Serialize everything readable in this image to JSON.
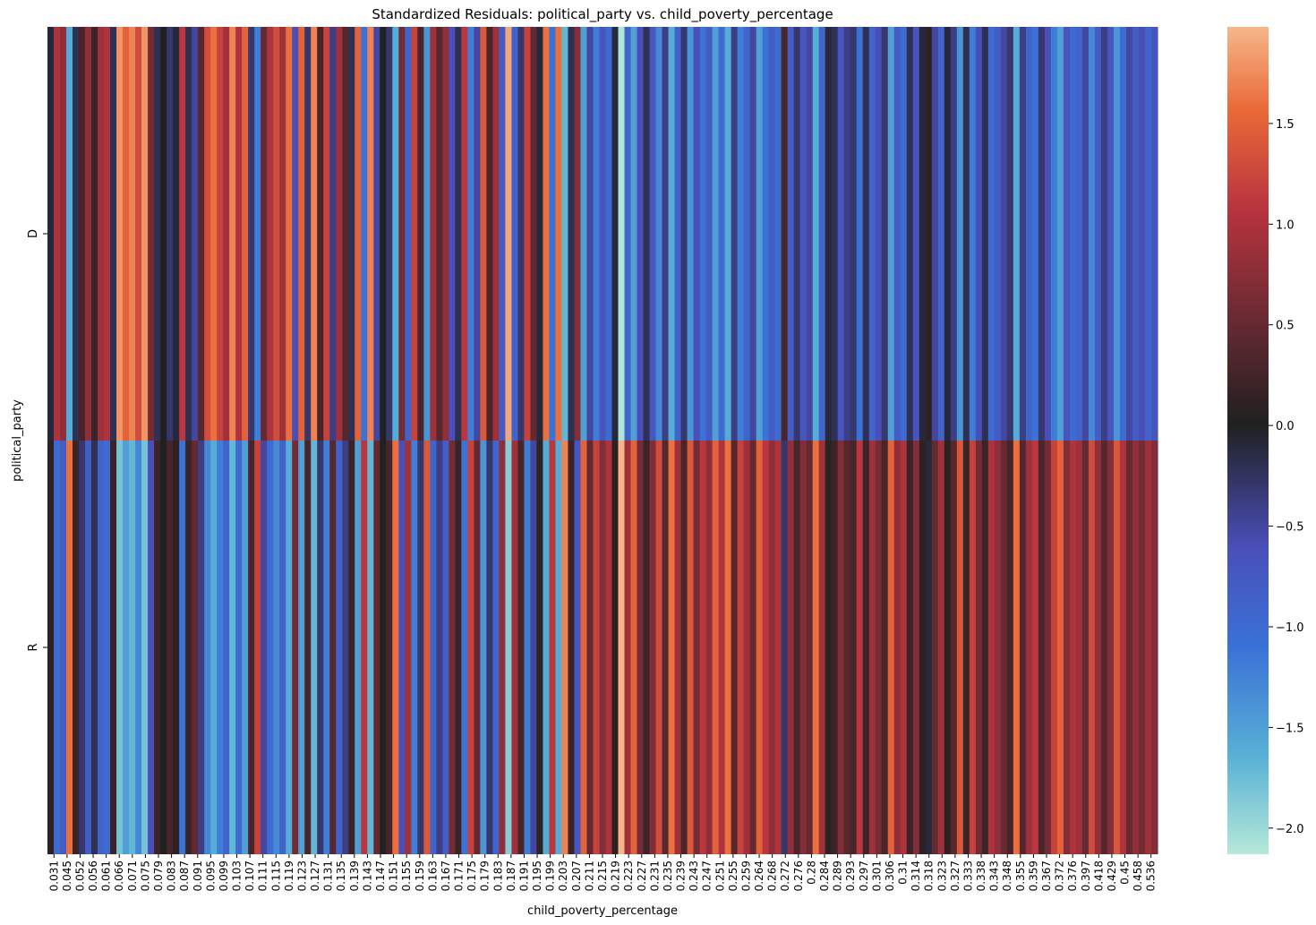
{
  "chart_data": {
    "type": "heatmap",
    "title": "Standardized Residuals: political_party vs. child_poverty_percentage",
    "xlabel": "child_poverty_percentage",
    "ylabel": "political_party",
    "rows": [
      "D",
      "R"
    ],
    "x_tick_labels": [
      "0.031",
      "0.045",
      "0.052",
      "0.056",
      "0.061",
      "0.066",
      "0.071",
      "0.075",
      "0.079",
      "0.083",
      "0.087",
      "0.091",
      "0.095",
      "0.099",
      "0.103",
      "0.107",
      "0.111",
      "0.115",
      "0.119",
      "0.123",
      "0.127",
      "0.131",
      "0.135",
      "0.139",
      "0.143",
      "0.147",
      "0.151",
      "0.155",
      "0.159",
      "0.163",
      "0.167",
      "0.171",
      "0.175",
      "0.179",
      "0.183",
      "0.187",
      "0.191",
      "0.195",
      "0.199",
      "0.203",
      "0.207",
      "0.211",
      "0.215",
      "0.219",
      "0.223",
      "0.227",
      "0.231",
      "0.235",
      "0.239",
      "0.243",
      "0.247",
      "0.251",
      "0.255",
      "0.259",
      "0.264",
      "0.268",
      "0.272",
      "0.276",
      "0.28",
      "0.284",
      "0.289",
      "0.293",
      "0.297",
      "0.301",
      "0.306",
      "0.31",
      "0.314",
      "0.318",
      "0.323",
      "0.327",
      "0.333",
      "0.338",
      "0.343",
      "0.348",
      "0.355",
      "0.359",
      "0.367",
      "0.372",
      "0.376",
      "0.397",
      "0.418",
      "0.429",
      "0.45",
      "0.458",
      "0.536"
    ],
    "d_row_residuals": [
      -0.1,
      1.0,
      0.8,
      -1.6,
      -0.2,
      0.3,
      0.8,
      0.2,
      0.9,
      1.0,
      -0.2,
      1.8,
      1.5,
      1.7,
      1.3,
      1.8,
      0.6,
      -0.2,
      0.0,
      -0.3,
      -0.1,
      1.1,
      -0.2,
      -0.5,
      0.4,
      1.3,
      1.6,
      1.2,
      0.9,
      1.7,
      1.0,
      1.5,
      -0.3,
      -1.2,
      0.5,
      1.0,
      1.3,
      0.9,
      1.6,
      -0.6,
      1.5,
      -0.3,
      1.7,
      0.3,
      1.2,
      -0.4,
      0.9,
      0.4,
      -0.2,
      1.5,
      -1.1,
      1.7,
      -0.5,
      0.0,
      -0.3,
      -1.6,
      0.6,
      -0.9,
      1.2,
      0.3,
      -1.4,
      0.9,
      0.4,
      0.8,
      -0.6,
      -0.2,
      1.1,
      -1.2,
      -0.5,
      1.4,
      0.3,
      0.9,
      -0.8,
      1.9,
      -0.9,
      -0.3,
      1.2,
      0.5,
      -0.1,
      1.6,
      -1.1,
      1.6,
      -1.7,
      -0.2,
      0.7,
      -1.5,
      -0.5,
      -1.2,
      -0.7,
      -1.0,
      -0.1,
      -2.1,
      -0.9,
      -1.5,
      -0.6,
      -0.2,
      -0.7,
      -1.3,
      -0.4,
      -1.6,
      -0.9,
      -0.3,
      -1.4,
      -0.6,
      -1.1,
      -0.8,
      -1.5,
      -1.0,
      -1.6,
      -0.4,
      -1.2,
      -0.9,
      -0.5,
      -1.5,
      -1.1,
      -0.8,
      -1.0,
      0.3,
      -0.8,
      -0.3,
      -0.7,
      -0.5,
      -1.6,
      -0.9,
      -0.1,
      -0.2,
      -0.7,
      -0.4,
      -0.3,
      -1.1,
      -0.2,
      -0.9,
      -0.6,
      -0.3,
      -1.5,
      -0.8,
      -1.0,
      -0.2,
      -0.7,
      -0.1,
      0.1,
      -0.5,
      -0.9,
      -0.1,
      -0.4,
      -1.4,
      -0.2,
      -1.2,
      -0.6,
      -0.2,
      -1.0,
      -0.8,
      -0.5,
      -0.3,
      -1.6,
      -0.4,
      -0.9,
      -1.1,
      -0.3,
      -0.6,
      -1.2,
      -1.5,
      -0.7,
      -1.0,
      -0.9,
      -0.5,
      -1.3,
      -0.8,
      -0.4,
      -0.7,
      -1.4,
      -1.0,
      -0.5,
      -0.8,
      -0.6,
      -0.9,
      -0.7
    ],
    "colorbar": {
      "range": [
        -2.13,
        1.98
      ],
      "ticks": [
        1.5,
        1.0,
        0.5,
        0.0,
        -0.5,
        -1.0,
        -1.5,
        -2.0
      ],
      "tick_labels": [
        "1.5",
        "1.0",
        "0.5",
        "0.0",
        "−0.5",
        "−1.0",
        "−1.5",
        "−2.0"
      ]
    },
    "grid": false
  },
  "colors": {
    "low": "#b5e8d8",
    "mid_low": "#4a4fba",
    "center": "#202020",
    "mid_high": "#b8343f",
    "high": "#f6b68a"
  }
}
